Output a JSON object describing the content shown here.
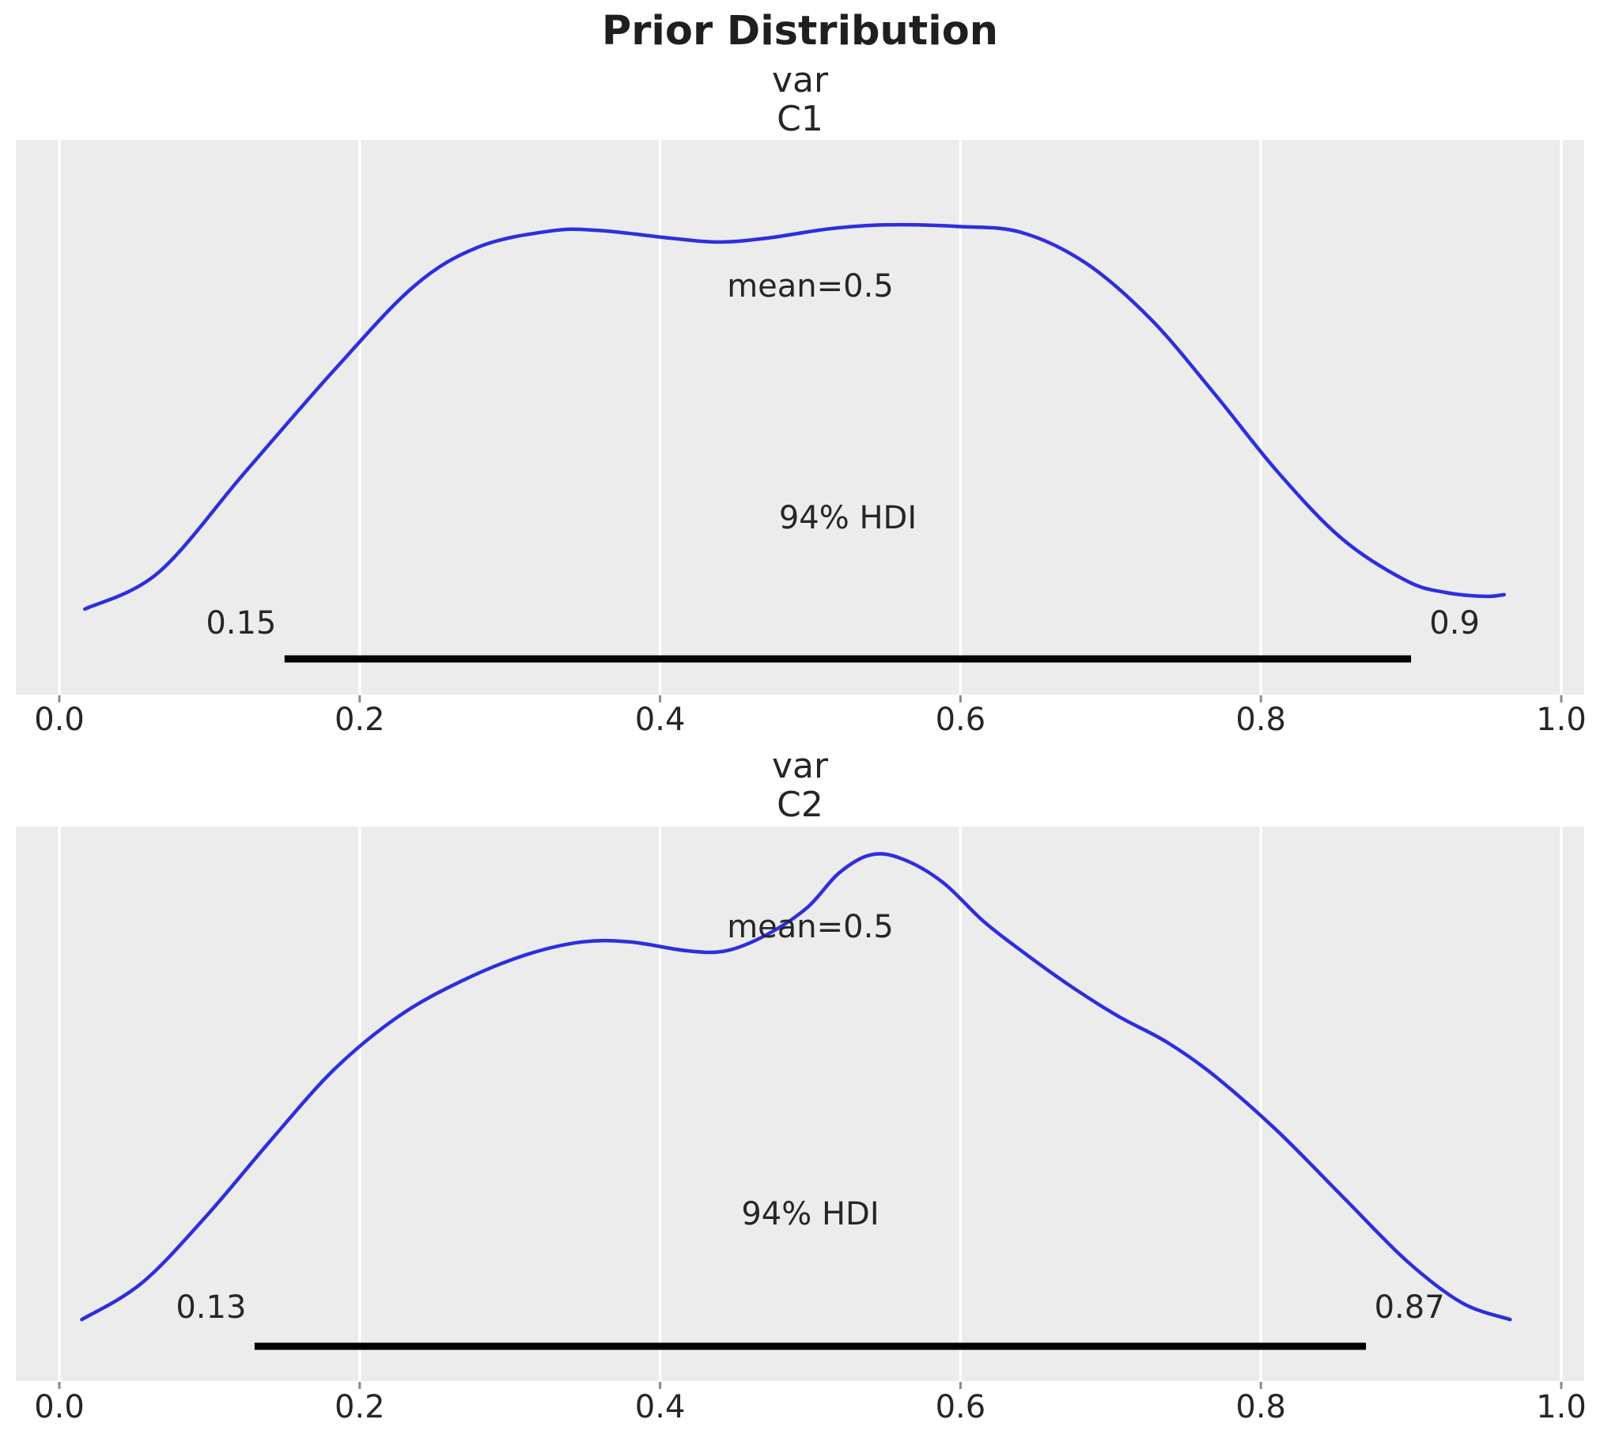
{
  "title": "Prior Distribution",
  "x_axis": {
    "ticks": [
      0.0,
      0.2,
      0.4,
      0.6,
      0.8,
      1.0
    ],
    "tick_labels": [
      "0.0",
      "0.2",
      "0.4",
      "0.6",
      "0.8",
      "1.0"
    ],
    "range": [
      -0.029,
      1.026
    ]
  },
  "colors": {
    "curve": "#2e2ede",
    "plot_bg": "#ececec",
    "gridline": "#ffffff",
    "hdi_bar": "#000000",
    "text": "#262626",
    "title_text": "#1f1f1f",
    "tick_mark": "#8a8a8a"
  },
  "chart_data": [
    {
      "type": "line",
      "kind": "kde-density",
      "title_lines": [
        "var",
        "C1"
      ],
      "mean": 0.5,
      "mean_label": "mean=0.5",
      "hdi_prob": 0.94,
      "hdi_label": "94% HDI",
      "hdi": [
        0.15,
        0.9
      ],
      "hdi_lo_label": "0.15",
      "hdi_hi_label": "0.9",
      "xlim": [
        0,
        1
      ],
      "points": [
        [
          0.017,
          0.154
        ],
        [
          0.066,
          0.22
        ],
        [
          0.124,
          0.402
        ],
        [
          0.183,
          0.585
        ],
        [
          0.236,
          0.736
        ],
        [
          0.279,
          0.807
        ],
        [
          0.327,
          0.836
        ],
        [
          0.359,
          0.837
        ],
        [
          0.407,
          0.823
        ],
        [
          0.439,
          0.816
        ],
        [
          0.471,
          0.823
        ],
        [
          0.513,
          0.84
        ],
        [
          0.551,
          0.847
        ],
        [
          0.599,
          0.844
        ],
        [
          0.641,
          0.833
        ],
        [
          0.684,
          0.777
        ],
        [
          0.727,
          0.676
        ],
        [
          0.769,
          0.543
        ],
        [
          0.811,
          0.402
        ],
        [
          0.854,
          0.281
        ],
        [
          0.897,
          0.205
        ],
        [
          0.923,
          0.184
        ],
        [
          0.949,
          0.177
        ],
        [
          0.962,
          0.18
        ]
      ]
    },
    {
      "type": "line",
      "kind": "kde-density",
      "title_lines": [
        "var",
        "C2"
      ],
      "mean": 0.5,
      "mean_label": "mean=0.5",
      "hdi_prob": 0.94,
      "hdi_label": "94% HDI",
      "hdi": [
        0.13,
        0.87
      ],
      "hdi_lo_label": "0.13",
      "hdi_hi_label": "0.87",
      "xlim": [
        0,
        1
      ],
      "points": [
        [
          0.015,
          0.111
        ],
        [
          0.055,
          0.177
        ],
        [
          0.098,
          0.298
        ],
        [
          0.141,
          0.435
        ],
        [
          0.183,
          0.562
        ],
        [
          0.226,
          0.658
        ],
        [
          0.269,
          0.723
        ],
        [
          0.311,
          0.769
        ],
        [
          0.348,
          0.792
        ],
        [
          0.38,
          0.792
        ],
        [
          0.418,
          0.776
        ],
        [
          0.444,
          0.776
        ],
        [
          0.471,
          0.805
        ],
        [
          0.498,
          0.854
        ],
        [
          0.519,
          0.916
        ],
        [
          0.54,
          0.949
        ],
        [
          0.561,
          0.942
        ],
        [
          0.588,
          0.9
        ],
        [
          0.615,
          0.83
        ],
        [
          0.641,
          0.775
        ],
        [
          0.673,
          0.713
        ],
        [
          0.705,
          0.658
        ],
        [
          0.737,
          0.612
        ],
        [
          0.769,
          0.551
        ],
        [
          0.811,
          0.451
        ],
        [
          0.854,
          0.334
        ],
        [
          0.897,
          0.217
        ],
        [
          0.934,
          0.141
        ],
        [
          0.966,
          0.111
        ]
      ]
    }
  ]
}
